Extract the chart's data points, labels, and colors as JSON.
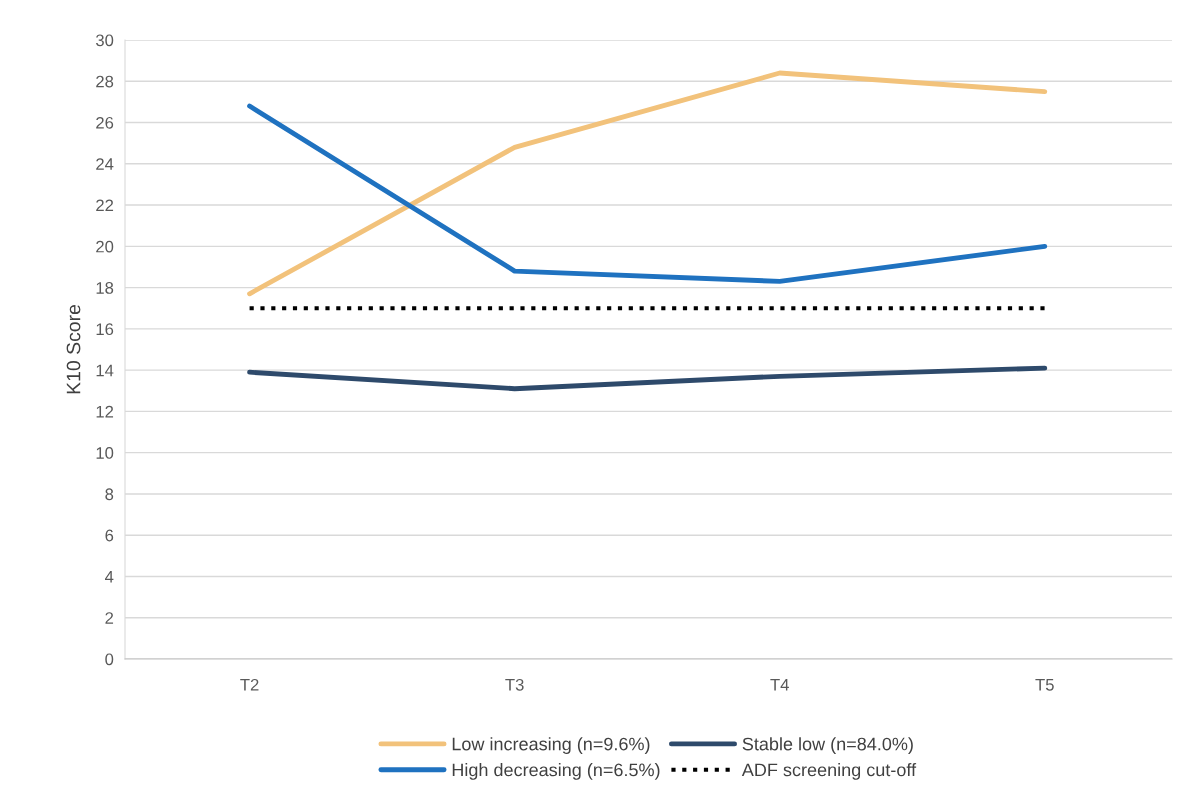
{
  "chart_data": {
    "type": "line",
    "ylabel": "K10 Score",
    "categories": [
      "T2",
      "T3",
      "T4",
      "T5"
    ],
    "series": [
      {
        "name": "Low increasing (n=9.6%)",
        "color": "#f2c27b",
        "values": [
          17.7,
          24.8,
          28.4,
          27.5
        ]
      },
      {
        "name": "Stable low (n=84.0%)",
        "color": "#2e4a6b",
        "values": [
          13.9,
          13.1,
          13.7,
          14.1
        ]
      },
      {
        "name": "High decreasing (n=6.5%)",
        "color": "#1f72c0",
        "values": [
          26.8,
          18.8,
          18.3,
          20.0
        ]
      },
      {
        "name": "ADF screening cut-off",
        "color": "#000000",
        "values": [
          17,
          17,
          17,
          17
        ],
        "line_style": "dotted"
      }
    ],
    "ylim": [
      0,
      30
    ],
    "yticks": [
      0,
      2,
      4,
      6,
      8,
      10,
      12,
      14,
      16,
      18,
      20,
      22,
      24,
      26,
      28,
      30
    ],
    "grid": "y",
    "legend": "bottom",
    "marker": "none",
    "line_style": "solid"
  }
}
